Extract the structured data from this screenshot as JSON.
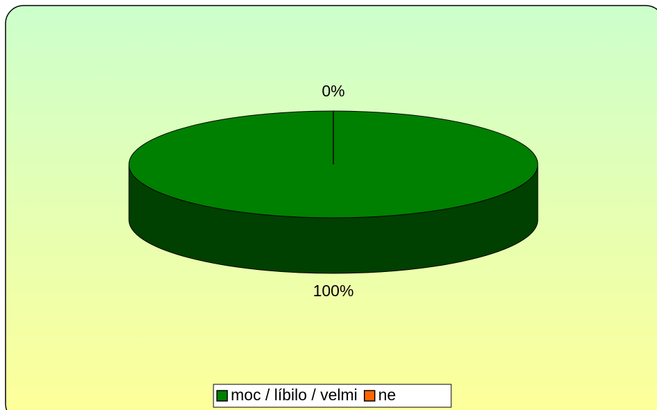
{
  "chart_data": {
    "type": "pie",
    "categories": [
      "moc / líbilo / velmi",
      "ne"
    ],
    "values": [
      100,
      0
    ],
    "value_labels": [
      "100%",
      "0%"
    ],
    "colors": [
      "#008000",
      "#ff6600"
    ],
    "legend": "bottom"
  }
}
